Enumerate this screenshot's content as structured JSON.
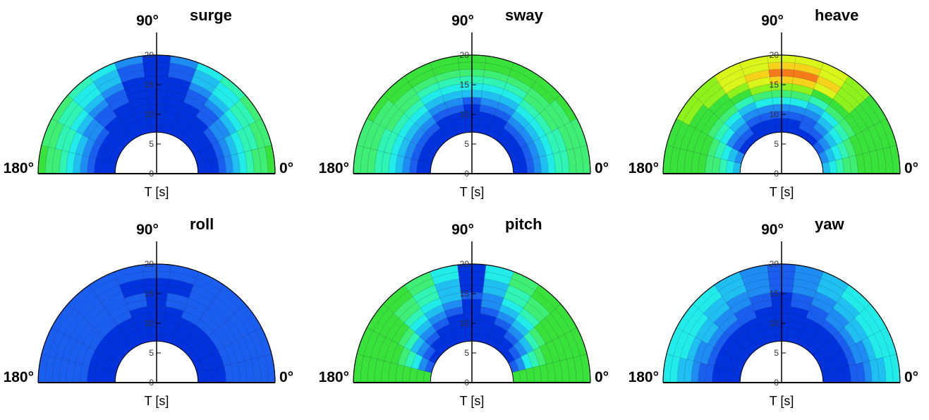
{
  "chart_data": [
    {
      "type": "heatmap",
      "title": "surge",
      "xlabel": "T [s]",
      "angle_labels": [
        "90°",
        "180°",
        "0°"
      ],
      "r_ticks": [
        0,
        5,
        10,
        15,
        20
      ],
      "rlim": [
        0,
        20
      ],
      "r_inner": 7
    },
    {
      "type": "heatmap",
      "title": "sway",
      "xlabel": "T [s]",
      "angle_labels": [
        "90°",
        "180°",
        "0°"
      ],
      "r_ticks": [
        0,
        5,
        10,
        15,
        20
      ],
      "rlim": [
        0,
        20
      ],
      "r_inner": 7
    },
    {
      "type": "heatmap",
      "title": "heave",
      "xlabel": "T [s]",
      "angle_labels": [
        "90°",
        "180°",
        "0°"
      ],
      "r_ticks": [
        0,
        5,
        10,
        15,
        20
      ],
      "rlim": [
        0,
        20
      ],
      "r_inner": 7
    },
    {
      "type": "heatmap",
      "title": "roll",
      "xlabel": "T [s]",
      "angle_labels": [
        "90°",
        "180°",
        "0°"
      ],
      "r_ticks": [
        0,
        5,
        10,
        15,
        20
      ],
      "rlim": [
        0,
        20
      ],
      "r_inner": 7
    },
    {
      "type": "heatmap",
      "title": "pitch",
      "xlabel": "T [s]",
      "angle_labels": [
        "90°",
        "180°",
        "0°"
      ],
      "r_ticks": [
        0,
        5,
        10,
        15,
        20
      ],
      "rlim": [
        0,
        20
      ],
      "r_inner": 7
    },
    {
      "type": "heatmap",
      "title": "yaw",
      "xlabel": "T [s]",
      "angle_labels": [
        "90°",
        "180°",
        "0°"
      ],
      "r_ticks": [
        0,
        5,
        10,
        15,
        20
      ],
      "rlim": [
        0,
        20
      ],
      "r_inner": 7
    }
  ],
  "palette": [
    "#0033dd",
    "#1a5ef0",
    "#1e8cf2",
    "#20bff2",
    "#22ecea",
    "#2ff4b4",
    "#3fef75",
    "#39e23a",
    "#8ef21c",
    "#d9f51a",
    "#f7d21a",
    "#f57b1a"
  ],
  "levels": {
    "surge": [
      [
        0,
        0,
        0,
        1,
        2,
        3,
        4,
        5,
        6,
        6,
        7
      ],
      [
        0,
        0,
        0,
        1,
        2,
        3,
        4,
        5,
        5,
        6,
        6
      ],
      [
        0,
        0,
        0,
        1,
        2,
        2,
        3,
        4,
        5,
        5,
        6
      ],
      [
        0,
        0,
        0,
        0,
        1,
        1,
        2,
        3,
        4,
        4,
        5
      ],
      [
        0,
        0,
        0,
        0,
        0,
        1,
        1,
        2,
        3,
        3,
        4
      ],
      [
        0,
        0,
        0,
        0,
        0,
        0,
        0,
        0,
        1,
        1,
        2
      ],
      [
        0,
        0,
        0,
        0,
        0,
        0,
        0,
        0,
        0,
        0,
        0
      ],
      [
        0,
        0,
        0,
        0,
        0,
        0,
        0,
        0,
        1,
        1,
        2
      ],
      [
        0,
        0,
        0,
        0,
        0,
        1,
        1,
        2,
        3,
        3,
        4
      ],
      [
        0,
        0,
        0,
        0,
        1,
        1,
        2,
        3,
        4,
        4,
        5
      ],
      [
        0,
        0,
        0,
        1,
        2,
        2,
        3,
        4,
        5,
        5,
        6
      ],
      [
        0,
        0,
        0,
        1,
        2,
        3,
        4,
        5,
        5,
        6,
        6
      ],
      [
        0,
        0,
        0,
        1,
        2,
        3,
        4,
        5,
        6,
        6,
        7
      ]
    ],
    "sway": [
      [
        0,
        0,
        1,
        2,
        3,
        4,
        5,
        5,
        6,
        6,
        6
      ],
      [
        0,
        0,
        1,
        2,
        3,
        4,
        5,
        5,
        6,
        6,
        6
      ],
      [
        0,
        0,
        1,
        2,
        3,
        4,
        5,
        6,
        6,
        6,
        7
      ],
      [
        0,
        0,
        1,
        2,
        3,
        4,
        5,
        6,
        6,
        7,
        7
      ],
      [
        0,
        0,
        0,
        1,
        2,
        3,
        4,
        5,
        6,
        7,
        7
      ],
      [
        0,
        0,
        0,
        1,
        2,
        3,
        4,
        5,
        6,
        7,
        7
      ],
      [
        0,
        0,
        0,
        0,
        1,
        3,
        4,
        5,
        6,
        7,
        7
      ],
      [
        0,
        0,
        0,
        1,
        2,
        3,
        4,
        5,
        6,
        7,
        7
      ],
      [
        0,
        0,
        0,
        1,
        2,
        3,
        4,
        5,
        6,
        7,
        7
      ],
      [
        0,
        0,
        1,
        2,
        3,
        4,
        5,
        6,
        6,
        7,
        7
      ],
      [
        0,
        0,
        1,
        2,
        3,
        4,
        5,
        6,
        6,
        6,
        7
      ],
      [
        0,
        0,
        1,
        2,
        3,
        4,
        5,
        5,
        6,
        6,
        6
      ],
      [
        0,
        0,
        1,
        2,
        3,
        4,
        5,
        5,
        6,
        6,
        6
      ]
    ],
    "heave": [
      [
        3,
        4,
        5,
        6,
        6,
        7,
        7,
        7,
        7,
        7,
        7
      ],
      [
        2,
        3,
        4,
        5,
        6,
        7,
        7,
        7,
        7,
        7,
        7
      ],
      [
        0,
        1,
        2,
        4,
        5,
        6,
        7,
        7,
        7,
        8,
        8
      ],
      [
        0,
        1,
        2,
        3,
        4,
        6,
        7,
        7,
        8,
        8,
        8
      ],
      [
        0,
        0,
        1,
        2,
        3,
        5,
        7,
        8,
        9,
        9,
        9
      ],
      [
        0,
        0,
        1,
        2,
        4,
        6,
        8,
        9,
        10,
        9,
        9
      ],
      [
        0,
        0,
        1,
        2,
        4,
        6,
        8,
        10,
        11,
        10,
        9
      ],
      [
        0,
        0,
        1,
        2,
        4,
        6,
        8,
        10,
        11,
        10,
        9
      ],
      [
        0,
        1,
        1,
        2,
        3,
        5,
        7,
        9,
        10,
        9,
        9
      ],
      [
        0,
        1,
        2,
        3,
        4,
        6,
        7,
        8,
        8,
        8,
        8
      ],
      [
        1,
        2,
        3,
        4,
        5,
        6,
        7,
        7,
        7,
        7,
        7
      ],
      [
        2,
        3,
        4,
        5,
        6,
        7,
        7,
        7,
        7,
        7,
        7
      ],
      [
        3,
        4,
        5,
        6,
        6,
        7,
        7,
        7,
        7,
        7,
        7
      ]
    ],
    "roll": [
      [
        0,
        0,
        0,
        0,
        1,
        1,
        1,
        1,
        1,
        1,
        1
      ],
      [
        0,
        0,
        0,
        0,
        1,
        1,
        1,
        1,
        1,
        1,
        1
      ],
      [
        0,
        0,
        0,
        0,
        1,
        1,
        1,
        1,
        1,
        1,
        1
      ],
      [
        0,
        0,
        0,
        0,
        1,
        1,
        1,
        1,
        1,
        1,
        1
      ],
      [
        0,
        0,
        0,
        0,
        1,
        1,
        1,
        1,
        1,
        1,
        1
      ],
      [
        0,
        0,
        0,
        0,
        0,
        1,
        1,
        0,
        0,
        1,
        1
      ],
      [
        0,
        0,
        0,
        0,
        0,
        0,
        0,
        0,
        0,
        1,
        1
      ],
      [
        0,
        0,
        0,
        0,
        0,
        1,
        1,
        0,
        0,
        1,
        1
      ],
      [
        0,
        0,
        0,
        0,
        1,
        1,
        1,
        1,
        1,
        1,
        1
      ],
      [
        0,
        0,
        0,
        0,
        1,
        1,
        1,
        1,
        1,
        1,
        1
      ],
      [
        0,
        0,
        0,
        0,
        1,
        1,
        1,
        1,
        1,
        1,
        1
      ],
      [
        0,
        0,
        0,
        0,
        1,
        1,
        1,
        1,
        1,
        1,
        1
      ],
      [
        0,
        0,
        0,
        0,
        1,
        1,
        1,
        1,
        1,
        1,
        1
      ]
    ],
    "pitch": [
      [
        7,
        7,
        7,
        7,
        7,
        7,
        7,
        7,
        7,
        7,
        7
      ],
      [
        1,
        2,
        4,
        5,
        6,
        7,
        7,
        7,
        7,
        7,
        7
      ],
      [
        0,
        1,
        2,
        3,
        5,
        6,
        7,
        7,
        7,
        7,
        7
      ],
      [
        0,
        0,
        1,
        2,
        3,
        4,
        5,
        6,
        6,
        7,
        7
      ],
      [
        0,
        0,
        0,
        1,
        2,
        3,
        4,
        5,
        5,
        6,
        6
      ],
      [
        0,
        0,
        0,
        0,
        1,
        2,
        3,
        3,
        3,
        4,
        4
      ],
      [
        0,
        0,
        0,
        0,
        0,
        0,
        1,
        0,
        0,
        0,
        0
      ],
      [
        0,
        0,
        0,
        0,
        1,
        2,
        2,
        3,
        3,
        4,
        4
      ],
      [
        0,
        0,
        0,
        1,
        2,
        3,
        4,
        5,
        5,
        6,
        6
      ],
      [
        0,
        0,
        1,
        2,
        3,
        4,
        5,
        6,
        6,
        7,
        7
      ],
      [
        0,
        1,
        2,
        3,
        5,
        6,
        7,
        7,
        7,
        7,
        7
      ],
      [
        1,
        2,
        4,
        5,
        6,
        7,
        7,
        7,
        7,
        7,
        7
      ],
      [
        7,
        7,
        7,
        7,
        7,
        7,
        7,
        7,
        7,
        7,
        7
      ]
    ],
    "yaw": [
      [
        0,
        0,
        0,
        0,
        1,
        1,
        2,
        3,
        3,
        4,
        4
      ],
      [
        0,
        0,
        0,
        0,
        1,
        2,
        2,
        3,
        4,
        4,
        4
      ],
      [
        0,
        0,
        0,
        0,
        1,
        2,
        3,
        3,
        4,
        4,
        4
      ],
      [
        0,
        0,
        0,
        0,
        1,
        2,
        2,
        3,
        3,
        4,
        4
      ],
      [
        0,
        0,
        0,
        0,
        1,
        1,
        2,
        2,
        3,
        3,
        3
      ],
      [
        0,
        0,
        0,
        0,
        0,
        1,
        1,
        2,
        2,
        2,
        2
      ],
      [
        0,
        0,
        0,
        0,
        0,
        0,
        0,
        1,
        1,
        1,
        1
      ],
      [
        0,
        0,
        0,
        0,
        0,
        1,
        1,
        2,
        2,
        2,
        2
      ],
      [
        0,
        0,
        0,
        0,
        1,
        1,
        2,
        2,
        3,
        3,
        3
      ],
      [
        0,
        0,
        0,
        0,
        1,
        2,
        2,
        3,
        3,
        4,
        4
      ],
      [
        0,
        0,
        0,
        0,
        1,
        2,
        3,
        3,
        4,
        4,
        4
      ],
      [
        0,
        0,
        0,
        0,
        1,
        2,
        2,
        3,
        4,
        4,
        4
      ],
      [
        0,
        0,
        0,
        0,
        1,
        1,
        2,
        3,
        3,
        4,
        4
      ]
    ]
  }
}
